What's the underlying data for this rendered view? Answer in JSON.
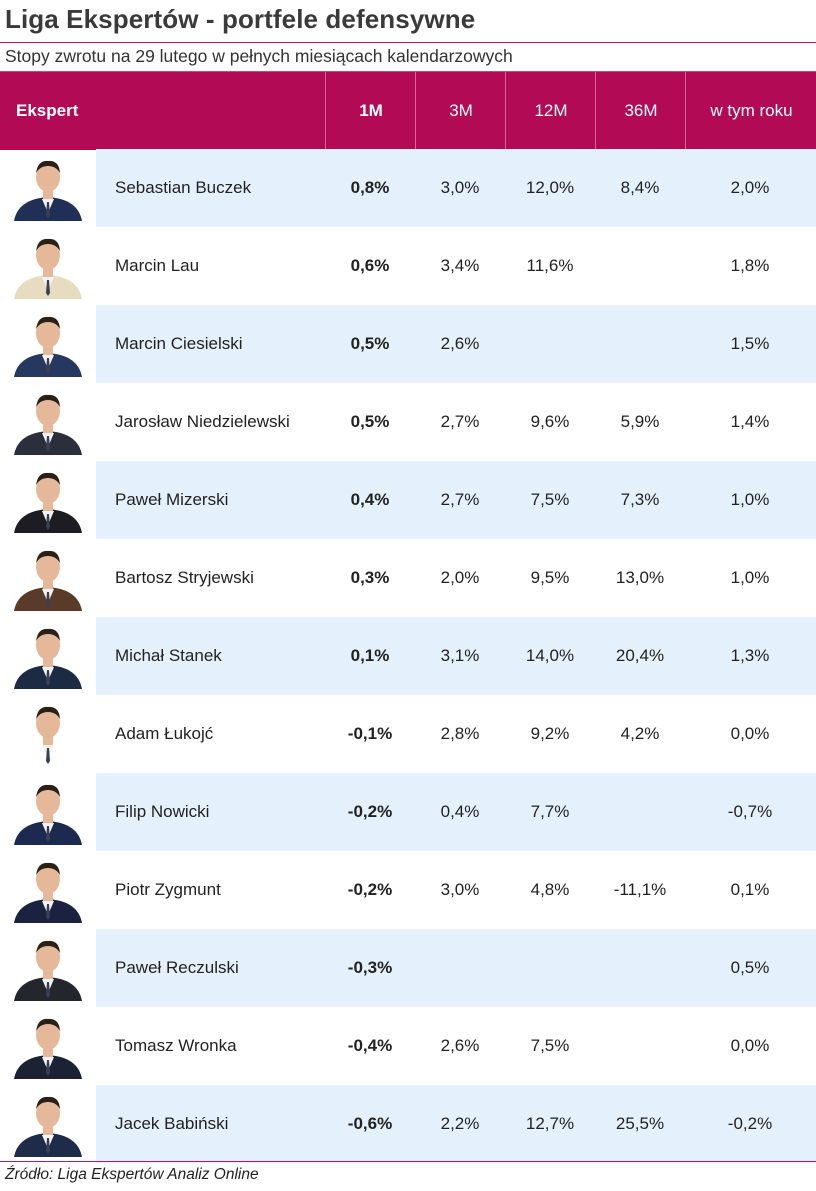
{
  "title": "Liga Ekspertów - portfele defensywne",
  "subtitle": "Stopy zwrotu na 29 lutego w pełnych miesiącach kalendarzowych",
  "columns": {
    "expert": "Ekspert",
    "m1": "1M",
    "m3": "3M",
    "m12": "12M",
    "m36": "36M",
    "ytd": "w tym roku"
  },
  "colors": {
    "header_bg": "#b20a55",
    "row_shade": "#e4f1fc",
    "rule": "#b5185c"
  },
  "rows": [
    {
      "name": "Sebastian Buczek",
      "m1": "0,8%",
      "m3": "3,0%",
      "m12": "12,0%",
      "m36": "8,4%",
      "ytd": "2,0%"
    },
    {
      "name": "Marcin Lau",
      "m1": "0,6%",
      "m3": "3,4%",
      "m12": "11,6%",
      "m36": "",
      "ytd": "1,8%"
    },
    {
      "name": "Marcin Ciesielski",
      "m1": "0,5%",
      "m3": "2,6%",
      "m12": "",
      "m36": "",
      "ytd": "1,5%"
    },
    {
      "name": "Jarosław Niedzielewski",
      "m1": "0,5%",
      "m3": "2,7%",
      "m12": "9,6%",
      "m36": "5,9%",
      "ytd": "1,4%"
    },
    {
      "name": "Paweł Mizerski",
      "m1": "0,4%",
      "m3": "2,7%",
      "m12": "7,5%",
      "m36": "7,3%",
      "ytd": "1,0%"
    },
    {
      "name": "Bartosz Stryjewski",
      "m1": "0,3%",
      "m3": "2,0%",
      "m12": "9,5%",
      "m36": "13,0%",
      "ytd": "1,0%"
    },
    {
      "name": "Michał Stanek",
      "m1": "0,1%",
      "m3": "3,1%",
      "m12": "14,0%",
      "m36": "20,4%",
      "ytd": "1,3%"
    },
    {
      "name": "Adam Łukojć",
      "m1": "-0,1%",
      "m3": "2,8%",
      "m12": "9,2%",
      "m36": "4,2%",
      "ytd": "0,0%"
    },
    {
      "name": "Filip Nowicki",
      "m1": "-0,2%",
      "m3": "0,4%",
      "m12": "7,7%",
      "m36": "",
      "ytd": "-0,7%"
    },
    {
      "name": "Piotr Zygmunt",
      "m1": "-0,2%",
      "m3": "3,0%",
      "m12": "4,8%",
      "m36": "-11,1%",
      "ytd": "0,1%"
    },
    {
      "name": "Paweł Reczulski",
      "m1": "-0,3%",
      "m3": "",
      "m12": "",
      "m36": "",
      "ytd": "0,5%"
    },
    {
      "name": "Tomasz Wronka",
      "m1": "-0,4%",
      "m3": "2,6%",
      "m12": "7,5%",
      "m36": "",
      "ytd": "0,0%"
    },
    {
      "name": "Jacek Babiński",
      "m1": "-0,6%",
      "m3": "2,2%",
      "m12": "12,7%",
      "m36": "25,5%",
      "ytd": "-0,2%"
    }
  ],
  "source": "Źródło: Liga Ekspertów Analiz Online"
}
